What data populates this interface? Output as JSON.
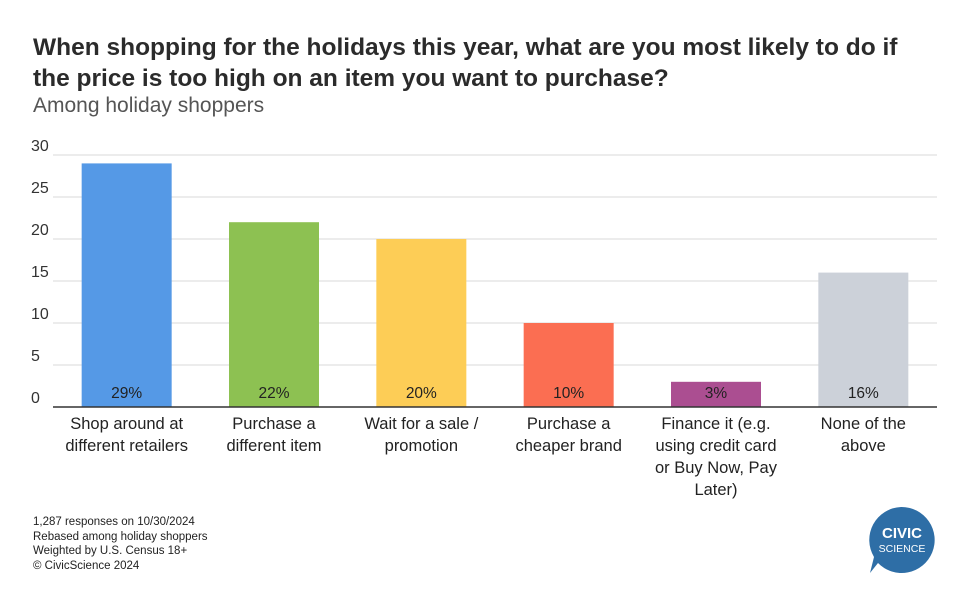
{
  "title": "When shopping for the holidays this year, what are you most likely to do if the price is too high on an item you want to purchase?",
  "subtitle": "Among holiday shoppers",
  "chart_data": {
    "type": "bar",
    "title": "When shopping for the holidays this year, what are you most likely to do if the price is too high on an item you want to purchase?",
    "subtitle": "Among holiday shoppers",
    "categories": [
      [
        "Shop around at",
        "different retailers"
      ],
      [
        "Purchase a",
        "different item"
      ],
      [
        "Wait for a sale /",
        "promotion"
      ],
      [
        "Purchase a",
        "cheaper brand"
      ],
      [
        "Finance it (e.g.",
        "using credit card",
        "or Buy Now, Pay",
        "Later)"
      ],
      [
        "None of the",
        "above"
      ]
    ],
    "values": [
      29,
      22,
      20,
      10,
      3,
      16
    ],
    "data_labels": [
      "29%",
      "22%",
      "20%",
      "10%",
      "3%",
      "16%"
    ],
    "colors": [
      "#5599e6",
      "#8dc152",
      "#fdcd56",
      "#fb6e52",
      "#ab4e91",
      "#ccd1d9"
    ],
    "ylim": [
      0,
      30
    ],
    "yticks": [
      0,
      5,
      10,
      15,
      20,
      25,
      30
    ],
    "grid": true,
    "xlabel": "",
    "ylabel": ""
  },
  "footnotes": [
    "1,287 responses on 10/30/2024",
    "Rebased among holiday shoppers",
    "Weighted by U.S. Census 18+",
    "© CivicScience 2024"
  ],
  "logo": {
    "line1": "CIVIC",
    "line2": "SCIENCE",
    "color": "#2e6ea6"
  }
}
